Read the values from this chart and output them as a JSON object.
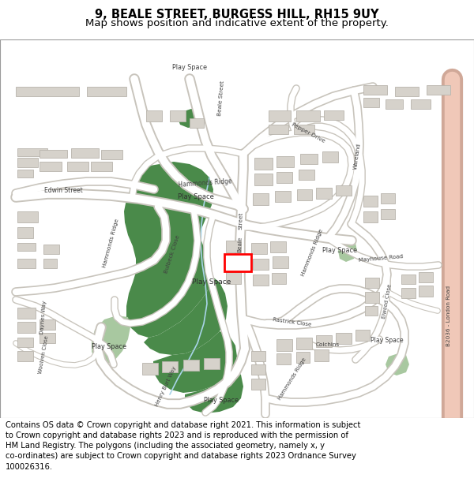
{
  "title_line1": "9, BEALE STREET, BURGESS HILL, RH15 9UY",
  "title_line2": "Map shows position and indicative extent of the property.",
  "footer_text": "Contains OS data © Crown copyright and database right 2021. This information is subject to Crown copyright and database rights 2023 and is reproduced with the permission of HM Land Registry. The polygons (including the associated geometry, namely x, y co-ordinates) are subject to Crown copyright and database rights 2023 Ordnance Survey 100026316.",
  "title_fontsize": 10.5,
  "subtitle_fontsize": 9.5,
  "footer_fontsize": 7.2,
  "bg_color": "#ffffff",
  "map_bg": "#f2efe9",
  "road_color": "#ffffff",
  "road_outline": "#c8c4bc",
  "building_color": "#d6d2cb",
  "building_outline": "#b8b4ac",
  "dark_green": "#4a8a4a",
  "light_green": "#a8c8a0",
  "highlight_color": "#ff0000",
  "highlight_fill": "#ffffff",
  "b2036_color": "#f0c8b8",
  "b2036_outline": "#d0a898",
  "stream_color": "#a8d4e8",
  "border_color": "#999999"
}
